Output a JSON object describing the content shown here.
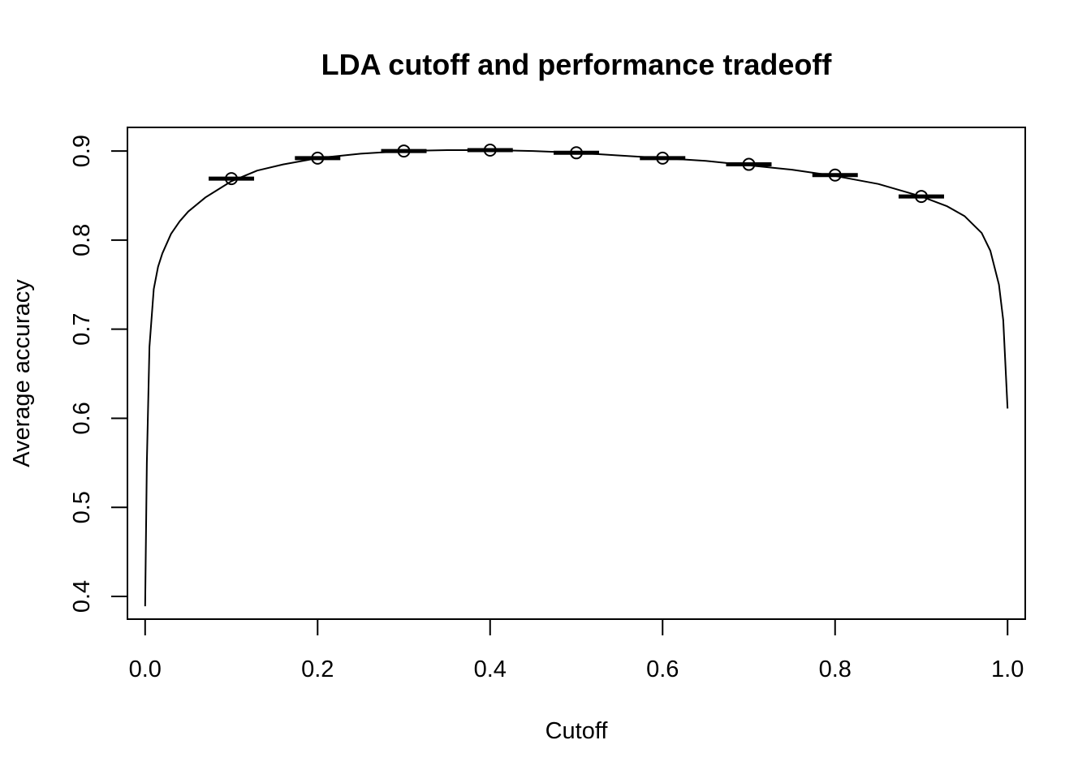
{
  "chart_data": {
    "type": "line",
    "title": "LDA cutoff and performance tradeoff",
    "xlabel": "Cutoff",
    "ylabel": "Average accuracy",
    "xlim": [
      -0.0205,
      1.0205
    ],
    "ylim": [
      0.3745,
      0.9265
    ],
    "x_ticks": [
      0.0,
      0.2,
      0.4,
      0.6,
      0.8,
      1.0
    ],
    "x_tick_labels": [
      "0.0",
      "0.2",
      "0.4",
      "0.6",
      "0.8",
      "1.0"
    ],
    "y_ticks": [
      0.4,
      0.5,
      0.6,
      0.7,
      0.8,
      0.9
    ],
    "y_tick_labels": [
      "0.4",
      "0.5",
      "0.6",
      "0.7",
      "0.8",
      "0.9"
    ],
    "grid": false,
    "legend": "none",
    "series": [
      {
        "kind": "line",
        "x": [
          0.0,
          0.002,
          0.005,
          0.01,
          0.015,
          0.02,
          0.03,
          0.04,
          0.05,
          0.07,
          0.1,
          0.13,
          0.16,
          0.2,
          0.25,
          0.3,
          0.35,
          0.4,
          0.45,
          0.5,
          0.55,
          0.6,
          0.65,
          0.7,
          0.75,
          0.8,
          0.85,
          0.9,
          0.93,
          0.95,
          0.97,
          0.98,
          0.99,
          0.995,
          1.0
        ],
        "y": [
          0.389,
          0.55,
          0.68,
          0.745,
          0.77,
          0.785,
          0.807,
          0.821,
          0.832,
          0.848,
          0.866,
          0.878,
          0.885,
          0.892,
          0.897,
          0.9,
          0.901,
          0.901,
          0.9,
          0.898,
          0.895,
          0.892,
          0.889,
          0.884,
          0.879,
          0.872,
          0.863,
          0.849,
          0.838,
          0.827,
          0.808,
          0.788,
          0.75,
          0.71,
          0.611
        ]
      },
      {
        "kind": "points",
        "x": [
          0.1,
          0.2,
          0.3,
          0.4,
          0.5,
          0.6,
          0.7,
          0.8,
          0.9
        ],
        "y": [
          0.869,
          0.892,
          0.9,
          0.901,
          0.898,
          0.892,
          0.885,
          0.873,
          0.849
        ]
      },
      {
        "kind": "median-bars",
        "x": [
          0.1,
          0.2,
          0.3,
          0.4,
          0.5,
          0.6,
          0.7,
          0.8,
          0.9
        ],
        "y": [
          0.869,
          0.892,
          0.9,
          0.901,
          0.898,
          0.892,
          0.885,
          0.873,
          0.849
        ]
      }
    ]
  }
}
